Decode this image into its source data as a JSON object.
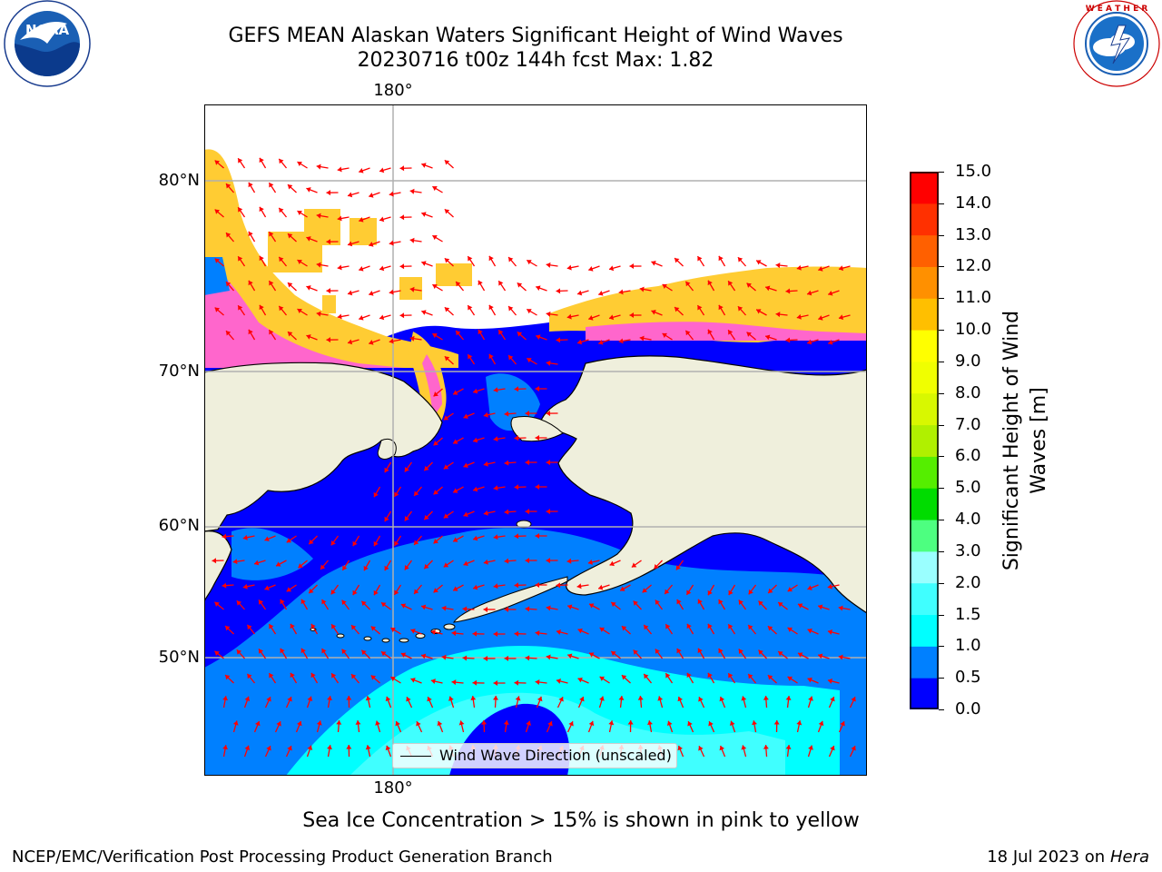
{
  "title": {
    "line1": "GEFS MEAN Alaskan Waters Significant Height of Wind Waves",
    "line2": "20230716 t00z 144h fcst   Max: 1.82"
  },
  "logos": {
    "left": {
      "name": "noaa-logo",
      "text": "NOAA",
      "ring_text": "NATIONAL OCEANIC AND ATMOSPHERIC ADMINISTRATION · U.S. DEPARTMENT OF COMMERCE"
    },
    "right": {
      "name": "nws-logo",
      "ring_text": "NATIONAL WEATHER SERVICE"
    }
  },
  "map": {
    "lon_labels": {
      "top": "180°",
      "bottom": "180°"
    },
    "lat_labels": [
      "80°N",
      "70°N",
      "60°N",
      "50°N"
    ],
    "legend": "Wind Wave Direction (unscaled)",
    "colors": {
      "land": "#efefdc",
      "no_data": "#ffffff",
      "grid": "#b0b0b0",
      "coast": "#000000",
      "arrow": "#ff0000"
    }
  },
  "colorbar": {
    "label": "Significant Height of Wind Waves [m]",
    "ticks": [
      "0.0",
      "0.5",
      "1.0",
      "1.5",
      "2.0",
      "3.0",
      "4.0",
      "5.0",
      "6.0",
      "7.0",
      "8.0",
      "9.0",
      "10.0",
      "11.0",
      "12.0",
      "13.0",
      "14.0",
      "15.0"
    ],
    "colors": [
      "#0000ff",
      "#0080ff",
      "#00ffff",
      "#40ffff",
      "#9affff",
      "#4dff80",
      "#00dc00",
      "#55ee00",
      "#b0f000",
      "#d8f800",
      "#f0ff00",
      "#ffff00",
      "#ffbf00",
      "#ff9000",
      "#ff6000",
      "#ff3000",
      "#ff0000"
    ]
  },
  "chart_data": {
    "type": "heatmap",
    "title": "GEFS MEAN Alaskan Waters Significant Height of Wind Waves",
    "subtitle": "20230716 t00z 144h fcst   Max: 1.82",
    "variable": "Significant Height of Wind Waves [m]",
    "max_value": 1.82,
    "value_range": [
      0.0,
      15.0
    ],
    "colorbar_levels": [
      0.0,
      0.5,
      1.0,
      1.5,
      2.0,
      3.0,
      4.0,
      5.0,
      6.0,
      7.0,
      8.0,
      9.0,
      10.0,
      11.0,
      12.0,
      13.0,
      14.0,
      15.0
    ],
    "lat_gridlines": [
      80,
      70,
      60,
      50
    ],
    "lon_gridlines": [
      180
    ],
    "overlay": "Wind Wave Direction (unscaled)",
    "ice_note": "Sea Ice Concentration > 15% is shown in pink to yellow",
    "grid": true
  },
  "caption": "Sea Ice Concentration > 15% is shown in pink to yellow",
  "footer": {
    "left": "NCEP/EMC/Verification Post Processing Product Generation Branch",
    "date": "18 Jul 2023 on ",
    "machine": "Hera"
  }
}
